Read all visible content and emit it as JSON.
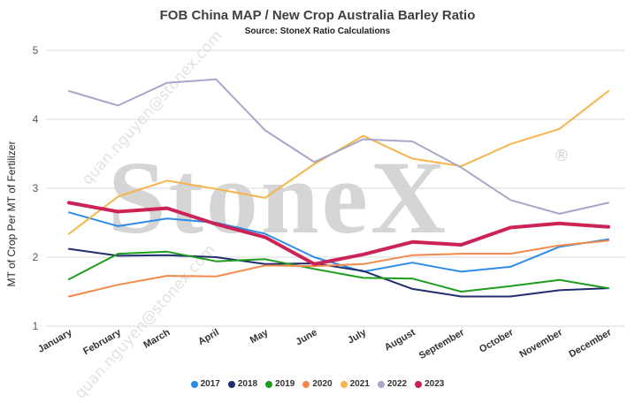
{
  "chart_data": {
    "type": "line",
    "title": "FOB China MAP / New Crop Australia Barley Ratio",
    "subtitle": "Source: StoneX Ratio Calculations",
    "xlabel": "",
    "ylabel": "MT of Crop Per MT of Fertilizer",
    "ylim": [
      1,
      5
    ],
    "yticks": [
      "1",
      "2",
      "3",
      "4",
      "5"
    ],
    "grid": true,
    "legend_position": "bottom",
    "categories": [
      "January",
      "February",
      "March",
      "April",
      "May",
      "June",
      "July",
      "August",
      "September",
      "October",
      "November",
      "December"
    ],
    "series": [
      {
        "name": "2017",
        "color": "#2e8ce8",
        "values": [
          2.65,
          2.45,
          2.56,
          2.5,
          2.34,
          2.0,
          1.79,
          1.92,
          1.79,
          1.86,
          2.15,
          2.26
        ]
      },
      {
        "name": "2018",
        "color": "#1f2e6e",
        "values": [
          2.12,
          2.02,
          2.03,
          2.0,
          1.9,
          1.91,
          1.8,
          1.54,
          1.43,
          1.43,
          1.52,
          1.55
        ]
      },
      {
        "name": "2019",
        "color": "#1e9c1e",
        "values": [
          1.68,
          2.05,
          2.08,
          1.94,
          1.97,
          1.83,
          1.7,
          1.69,
          1.5,
          1.58,
          1.67,
          1.55
        ]
      },
      {
        "name": "2020",
        "color": "#f4884a",
        "values": [
          1.43,
          1.6,
          1.73,
          1.72,
          1.88,
          1.87,
          1.9,
          2.03,
          2.05,
          2.05,
          2.17,
          2.24
        ]
      },
      {
        "name": "2021",
        "color": "#f5b54b",
        "values": [
          2.34,
          2.88,
          3.11,
          2.99,
          2.86,
          3.35,
          3.76,
          3.43,
          3.32,
          3.64,
          3.86,
          4.41
        ]
      },
      {
        "name": "2022",
        "color": "#a7a7cc",
        "values": [
          4.41,
          4.2,
          4.53,
          4.58,
          3.84,
          3.38,
          3.71,
          3.68,
          3.3,
          2.83,
          2.63,
          2.79
        ]
      },
      {
        "name": "2023",
        "color": "#cc2255",
        "bold": true,
        "values": [
          2.79,
          2.66,
          2.71,
          2.48,
          2.29,
          1.9,
          2.04,
          2.22,
          2.18,
          2.43,
          2.49,
          2.44
        ]
      }
    ]
  },
  "watermark": {
    "brand_text": "StoneX",
    "registered_mark": "®",
    "diagonal_text_1": "quan.nguyen@stonex.com",
    "diagonal_text_2": "quan.nguyen@stonex.com"
  }
}
